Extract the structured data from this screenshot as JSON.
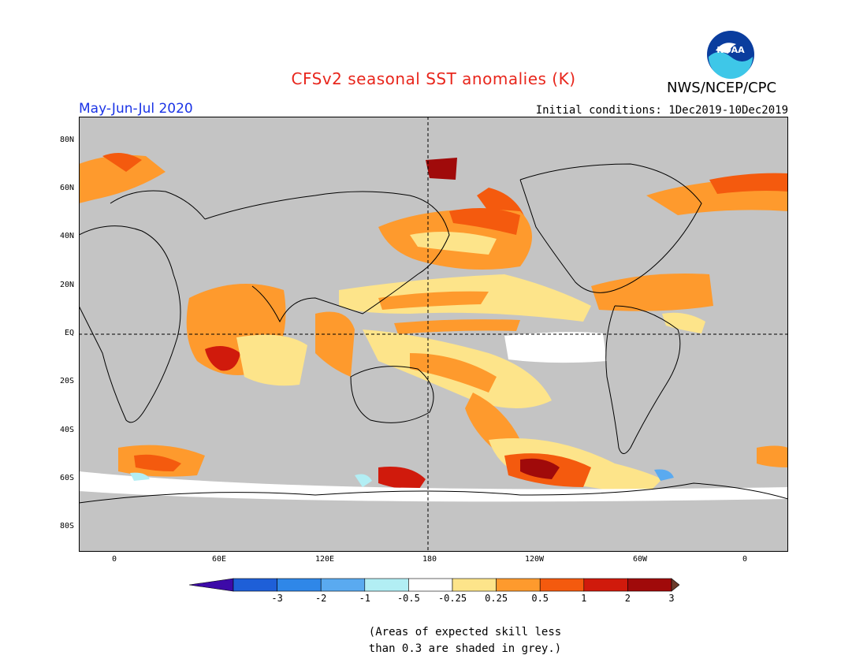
{
  "header": {
    "title": "CFSv2 seasonal SST anomalies (K)",
    "agency": "NWS/NCEP/CPC",
    "season": "May-Jun-Jul 2020",
    "initial_conditions": "Initial conditions: 1Dec2019-10Dec2019"
  },
  "logo": {
    "icon": "noaa-logo",
    "text": "NOAA"
  },
  "map": {
    "lat_ticks": [
      "80N",
      "60N",
      "40N",
      "20N",
      "EQ",
      "20S",
      "40S",
      "60S",
      "80S"
    ],
    "lon_ticks": [
      "0",
      "60E",
      "120E",
      "180",
      "120W",
      "60W",
      "0"
    ]
  },
  "colorbar": {
    "labels": [
      "-3",
      "-2",
      "-1",
      "-0.5",
      "-0.25",
      "0.25",
      "0.5",
      "1",
      "2",
      "3"
    ],
    "colors": [
      "#3d0aa8",
      "#1e5fd8",
      "#2f87e8",
      "#5aaaf0",
      "#b2eef4",
      "#ffffff",
      "#fde48a",
      "#fe9a2d",
      "#f45a0e",
      "#d01a0c",
      "#a00a0a",
      "#6b3a2a"
    ]
  },
  "footnote": {
    "line1": "(Areas of expected skill less",
    "line2": "than 0.3 are shaded in grey.)"
  }
}
